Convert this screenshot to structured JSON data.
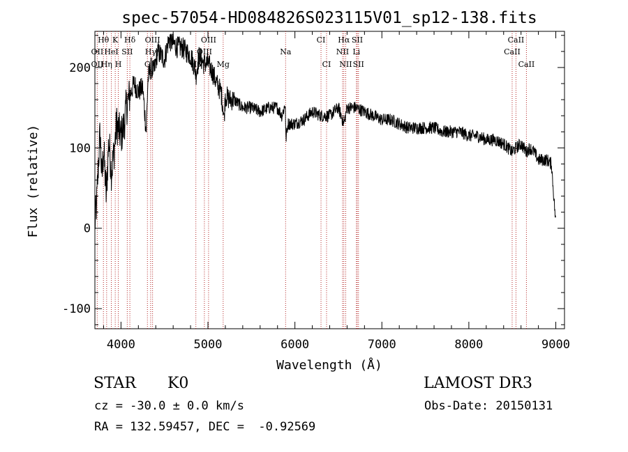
{
  "chart_data": {
    "type": "line",
    "title": "spec-57054-HD084826S023115V01_sp12-138.fits",
    "xlabel": "Wavelength (Å)",
    "ylabel": "Flux (relative)",
    "xlim": [
      3700,
      9100
    ],
    "ylim": [
      -125,
      245
    ],
    "xticks": [
      4000,
      5000,
      6000,
      7000,
      8000,
      9000
    ],
    "yticks": [
      -100,
      0,
      100,
      200
    ],
    "grid": false,
    "series": [
      {
        "x": [
          3700,
          3720,
          3740,
          3760,
          3780,
          3800,
          3830,
          3860,
          3890,
          3920,
          3950,
          3980,
          4000,
          4030,
          4060,
          4100,
          4150,
          4200,
          4250,
          4290,
          4310,
          4340,
          4380,
          4420,
          4460,
          4500,
          4550,
          4600,
          4650,
          4700,
          4750,
          4800,
          4850,
          4861,
          4900,
          4950,
          5000,
          5050,
          5100,
          5150,
          5175,
          5185,
          5200,
          5250,
          5300,
          5400,
          5500,
          5600,
          5700,
          5800,
          5850,
          5890,
          5895,
          5920,
          6000,
          6100,
          6200,
          6300,
          6400,
          6500,
          6563,
          6600,
          6650,
          6700,
          6800,
          6900,
          7000,
          7100,
          7200,
          7300,
          7400,
          7500,
          7600,
          7700,
          7800,
          7900,
          8000,
          8100,
          8200,
          8300,
          8400,
          8498,
          8542,
          8600,
          8662,
          8700,
          8750,
          8800,
          8850,
          8900,
          8950,
          9000
        ],
        "values": [
          5,
          30,
          80,
          120,
          60,
          100,
          40,
          110,
          70,
          95,
          130,
          120,
          115,
          125,
          150,
          165,
          180,
          170,
          175,
          120,
          185,
          200,
          195,
          220,
          215,
          210,
          235,
          230,
          225,
          225,
          220,
          215,
          200,
          190,
          215,
          205,
          205,
          195,
          180,
          170,
          150,
          135,
          165,
          160,
          160,
          150,
          150,
          145,
          150,
          150,
          140,
          155,
          110,
          130,
          130,
          135,
          145,
          140,
          140,
          150,
          130,
          150,
          150,
          150,
          145,
          140,
          135,
          135,
          130,
          125,
          125,
          125,
          125,
          120,
          120,
          120,
          115,
          115,
          110,
          110,
          105,
          95,
          100,
          105,
          95,
          100,
          95,
          85,
          85,
          85,
          80,
          5
        ]
      }
    ],
    "line_labels": [
      {
        "text": "Hθ",
        "wave": 3798,
        "row": 0
      },
      {
        "text": "OII",
        "wave": 3727,
        "row": 1
      },
      {
        "text": "OII",
        "wave": 3727,
        "row": 2
      },
      {
        "text": "Hη",
        "wave": 3835,
        "row": 2
      },
      {
        "text": "K",
        "wave": 3934,
        "row": 0
      },
      {
        "text": "HeI",
        "wave": 3889,
        "row": 1
      },
      {
        "text": "H",
        "wave": 3969,
        "row": 2
      },
      {
        "text": "Hδ",
        "wave": 4102,
        "row": 0
      },
      {
        "text": "SII",
        "wave": 4072,
        "row": 1
      },
      {
        "text": "OIII",
        "wave": 4363,
        "row": 0
      },
      {
        "text": "Hγ",
        "wave": 4341,
        "row": 1
      },
      {
        "text": "G",
        "wave": 4304,
        "row": 2
      },
      {
        "text": "OIII",
        "wave": 5007,
        "row": 0
      },
      {
        "text": "OIII",
        "wave": 4959,
        "row": 1
      },
      {
        "text": "Hβ",
        "wave": 4861,
        "row": 2
      },
      {
        "text": "Mg",
        "wave": 5175,
        "row": 2
      },
      {
        "text": "Na",
        "wave": 5893,
        "row": 1
      },
      {
        "text": "CI",
        "wave": 6300,
        "row": 0
      },
      {
        "text": "CI",
        "wave": 6364,
        "row": 2
      },
      {
        "text": "Hα",
        "wave": 6563,
        "row": 0
      },
      {
        "text": "NII",
        "wave": 6548,
        "row": 1
      },
      {
        "text": "NII",
        "wave": 6584,
        "row": 2
      },
      {
        "text": "SII",
        "wave": 6717,
        "row": 0
      },
      {
        "text": "Li",
        "wave": 6707,
        "row": 1
      },
      {
        "text": "SII",
        "wave": 6731,
        "row": 2
      },
      {
        "text": "CaII",
        "wave": 8542,
        "row": 0
      },
      {
        "text": "CaII",
        "wave": 8498,
        "row": 1
      },
      {
        "text": "CaII",
        "wave": 8662,
        "row": 2
      }
    ],
    "line_markers": [
      3727,
      3798,
      3835,
      3889,
      3934,
      3969,
      4072,
      4102,
      4304,
      4341,
      4363,
      4861,
      4959,
      5007,
      5175,
      5893,
      6300,
      6364,
      6548,
      6563,
      6584,
      6707,
      6717,
      6731,
      8498,
      8542,
      8662
    ],
    "colors": {
      "spectrum": "#000000",
      "markers": "#b22222",
      "axes": "#000000"
    }
  },
  "info": {
    "object": "STAR",
    "subclass": "K0",
    "survey": "LAMOST DR3",
    "cz": "cz = -30.0 ± 0.0 km/s",
    "obs_date": "Obs-Date: 20150131",
    "coords": "RA = 132.59457, DEC =  -0.92569"
  }
}
